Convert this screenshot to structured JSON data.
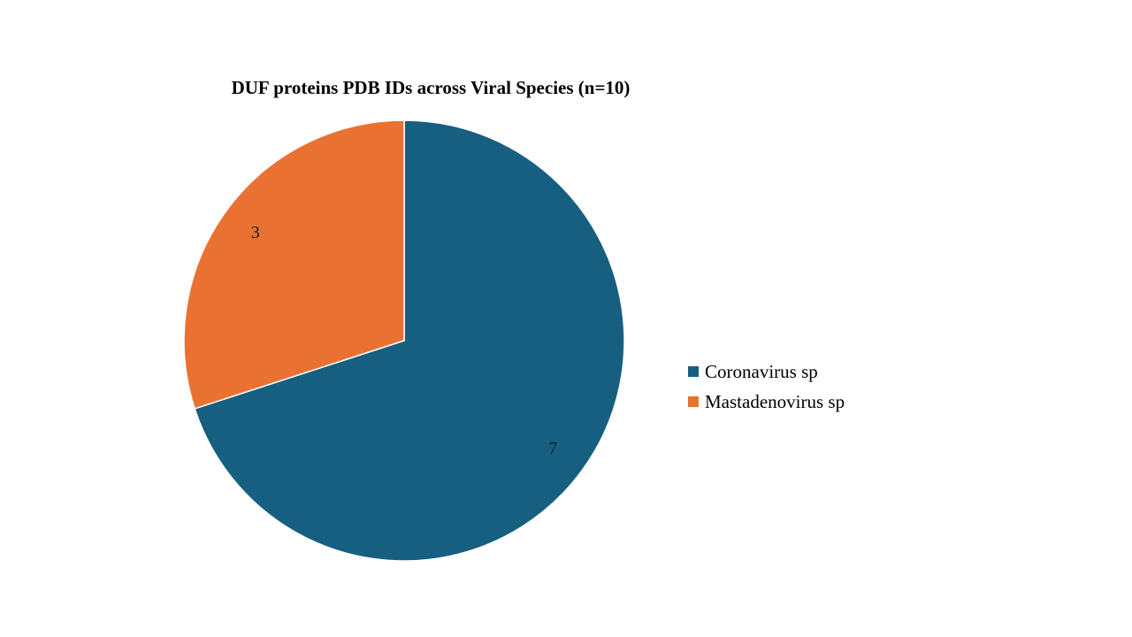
{
  "chart_data": {
    "type": "pie",
    "title": "DUF proteins PDB IDs across Viral Species (n=10)",
    "slices": [
      {
        "label": "Coronavirus sp",
        "value": 7,
        "data_label": "7",
        "color": "#175f80"
      },
      {
        "label": "Mastadenovirus sp",
        "value": 3,
        "data_label": "3",
        "color": "#e97233"
      }
    ],
    "legend_position": "right"
  }
}
